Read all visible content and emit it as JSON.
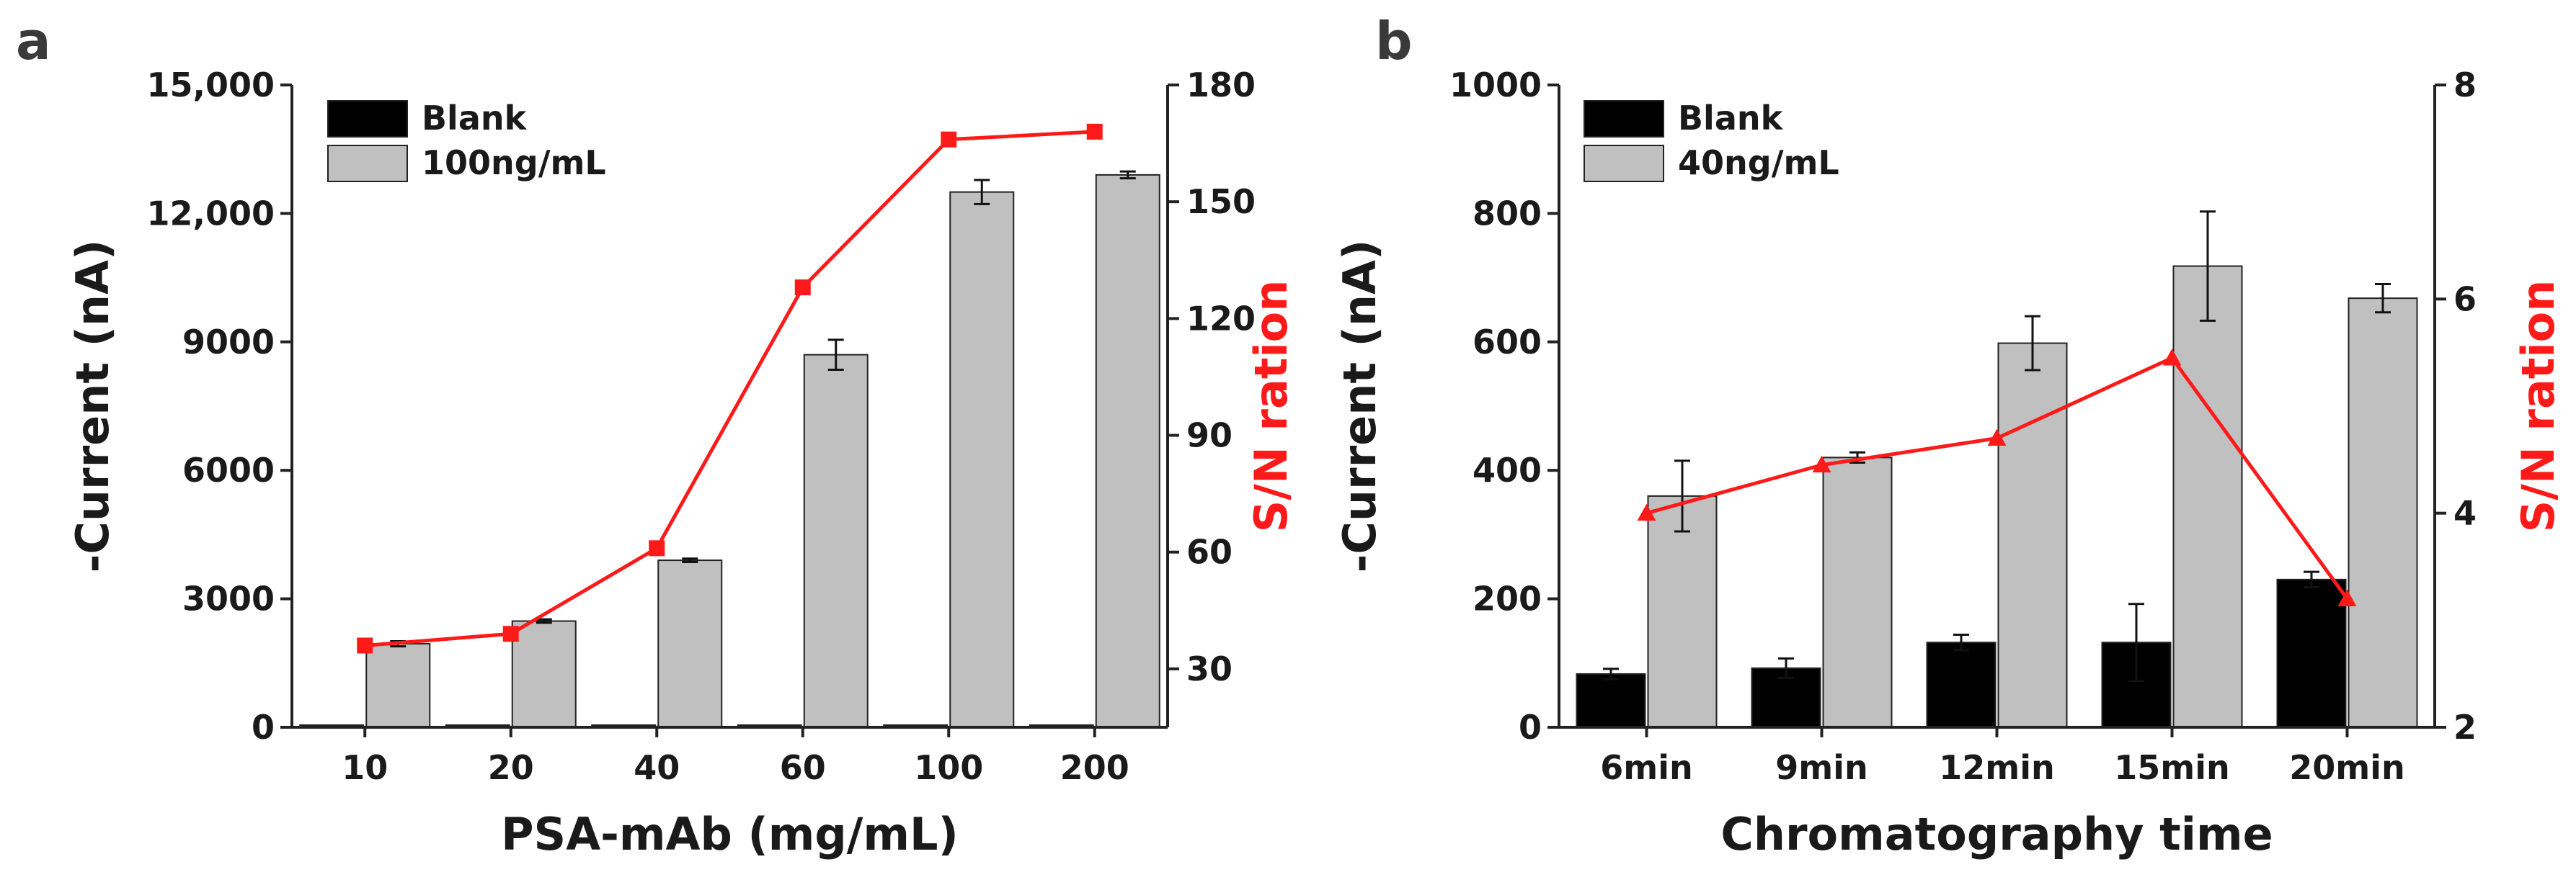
{
  "chart_data": [
    {
      "panel": "a",
      "type": "bar",
      "categories": [
        "10",
        "20",
        "40",
        "60",
        "100",
        "200"
      ],
      "xlabel": "PSA-mAb (mg/mL)",
      "ylabel": "-Current (nA)",
      "y2label": "S/N ration",
      "ylim": [
        0,
        15000
      ],
      "y2lim": [
        15,
        180
      ],
      "yticks": [
        0,
        3000,
        6000,
        9000,
        12000,
        15000
      ],
      "ytick_labels": [
        "0",
        "3000",
        "6000",
        "9000",
        "12,000",
        "15,000"
      ],
      "y2ticks": [
        30,
        60,
        90,
        120,
        150,
        180
      ],
      "y2tick_labels": [
        "30",
        "60",
        "90",
        "120",
        "150",
        "180"
      ],
      "series": [
        {
          "name": "Blank",
          "color": "#000000",
          "values": [
            30,
            30,
            30,
            30,
            30,
            30
          ],
          "errors": [
            0,
            0,
            0,
            0,
            0,
            0
          ]
        },
        {
          "name": "100ng/mL",
          "color": "#c0c0c0",
          "values": [
            1950,
            2480,
            3900,
            8700,
            12500,
            12900
          ],
          "errors": [
            60,
            40,
            40,
            350,
            280,
            80
          ]
        }
      ],
      "line": {
        "name": "S/N ration",
        "color": "#ff1a1a",
        "marker": "square",
        "axis": "right",
        "values": [
          36,
          39,
          61,
          128,
          166,
          168
        ]
      },
      "legend": "top-left"
    },
    {
      "panel": "b",
      "type": "bar",
      "categories": [
        "6min",
        "9min",
        "12min",
        "15min",
        "20min"
      ],
      "xlabel": "Chromatography time",
      "ylabel": "-Current (nA)",
      "y2label": "S/N ration",
      "ylim": [
        0,
        1000
      ],
      "y2lim": [
        2,
        8
      ],
      "yticks": [
        0,
        200,
        400,
        600,
        800,
        1000
      ],
      "ytick_labels": [
        "0",
        "200",
        "400",
        "600",
        "800",
        "1000"
      ],
      "y2ticks": [
        2,
        4,
        6,
        8
      ],
      "y2tick_labels": [
        "2",
        "4",
        "6",
        "8"
      ],
      "series": [
        {
          "name": "Blank",
          "color": "#000000",
          "values": [
            83,
            92,
            132,
            132,
            230
          ],
          "errors": [
            8,
            15,
            12,
            60,
            12
          ]
        },
        {
          "name": "40ng/mL",
          "color": "#c0c0c0",
          "values": [
            360,
            420,
            598,
            718,
            668
          ],
          "errors": [
            55,
            8,
            42,
            85,
            22
          ]
        }
      ],
      "line": {
        "name": "S/N ration",
        "color": "#ff1a1a",
        "marker": "triangle",
        "axis": "right",
        "values": [
          4.0,
          4.45,
          4.7,
          5.45,
          3.2
        ]
      },
      "legend": "top-left"
    }
  ]
}
